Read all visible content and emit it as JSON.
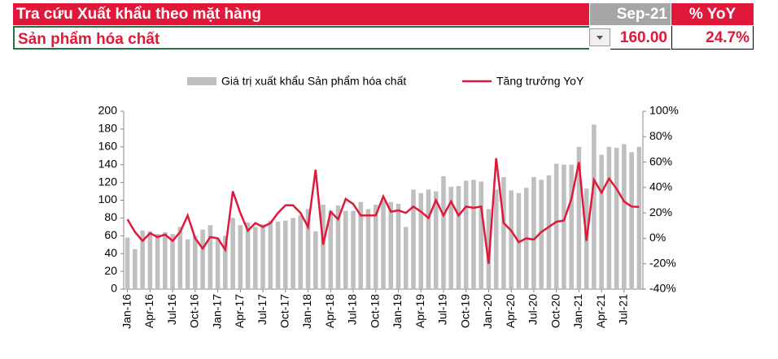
{
  "header": {
    "title": "Tra cứu Xuất khẩu theo mặt hàng",
    "period": "Sep-21",
    "yoy_label": "% YoY",
    "product": "Sản phẩm hóa chất",
    "value": "160.00",
    "yoy": "24.7%"
  },
  "chart_data": {
    "type": "bar-line",
    "categories": [
      "Jan-16",
      null,
      null,
      "Apr-16",
      null,
      null,
      "Jul-16",
      null,
      null,
      "Oct-16",
      null,
      null,
      "Jan-17",
      null,
      null,
      "Apr-17",
      null,
      null,
      "Jul-17",
      null,
      null,
      "Oct-17",
      null,
      null,
      "Jan-18",
      null,
      null,
      "Apr-18",
      null,
      null,
      "Jul-18",
      null,
      null,
      "Oct-18",
      null,
      null,
      "Jan-19",
      null,
      null,
      "Apr-19",
      null,
      null,
      "Jul-19",
      null,
      null,
      "Oct-19",
      null,
      null,
      "Jan-20",
      null,
      null,
      "Apr-20",
      null,
      null,
      "Jul-20",
      null,
      null,
      "Oct-20",
      null,
      null,
      "Jan-21",
      null,
      null,
      "Apr-21",
      null,
      null,
      "Jul-21",
      null,
      null
    ],
    "series": [
      {
        "name": "Giá trị xuất khẩu Sản phẩm hóa chất",
        "type": "bar",
        "color": "#bfbfbf",
        "values": [
          58,
          45,
          66,
          65,
          62,
          64,
          62,
          70,
          56,
          60,
          67,
          72,
          57,
          60,
          80,
          72,
          75,
          70,
          73,
          77,
          76,
          77,
          80,
          83,
          90,
          65,
          95,
          88,
          94,
          88,
          88,
          98,
          90,
          95,
          100,
          98,
          96,
          70,
          112,
          108,
          112,
          110,
          127,
          115,
          116,
          122,
          123,
          121,
          90,
          112,
          126,
          111,
          108,
          114,
          126,
          123,
          128,
          141,
          140,
          140,
          160,
          113,
          185,
          151,
          160,
          159,
          163,
          154,
          160
        ]
      },
      {
        "name": "Tăng trưởng YoY",
        "type": "line",
        "axis": "y2",
        "color": "#e0193a",
        "values": [
          15,
          5,
          -2,
          4,
          1,
          3,
          -2,
          5,
          18,
          0,
          -8,
          1,
          0,
          -9,
          37,
          20,
          6,
          12,
          9,
          12,
          20,
          26,
          26,
          20,
          9,
          54,
          -5,
          21,
          15,
          31,
          27,
          18,
          18,
          18,
          33,
          21,
          22,
          20,
          25,
          21,
          16,
          30,
          18,
          29,
          18,
          25,
          24,
          25,
          -20,
          63,
          12,
          6,
          -3,
          0,
          -1,
          5,
          9,
          13,
          14,
          31,
          60,
          -2,
          46,
          36,
          47,
          39,
          29,
          25,
          24.7
        ]
      }
    ],
    "ylim": [
      0,
      200
    ],
    "yticks": [
      0,
      20,
      40,
      60,
      80,
      100,
      120,
      140,
      160,
      180,
      200
    ],
    "y2lim": [
      -40,
      100
    ],
    "y2ticks": [
      {
        "value": -40,
        "label": "-40%"
      },
      {
        "value": -20,
        "label": "-20%"
      },
      {
        "value": 0,
        "label": "0%"
      },
      {
        "value": 20,
        "label": "20%"
      },
      {
        "value": 40,
        "label": "40%"
      },
      {
        "value": 60,
        "label": "60%"
      },
      {
        "value": 80,
        "label": "80%"
      },
      {
        "value": 100,
        "label": "100%"
      }
    ],
    "legend": "top"
  }
}
